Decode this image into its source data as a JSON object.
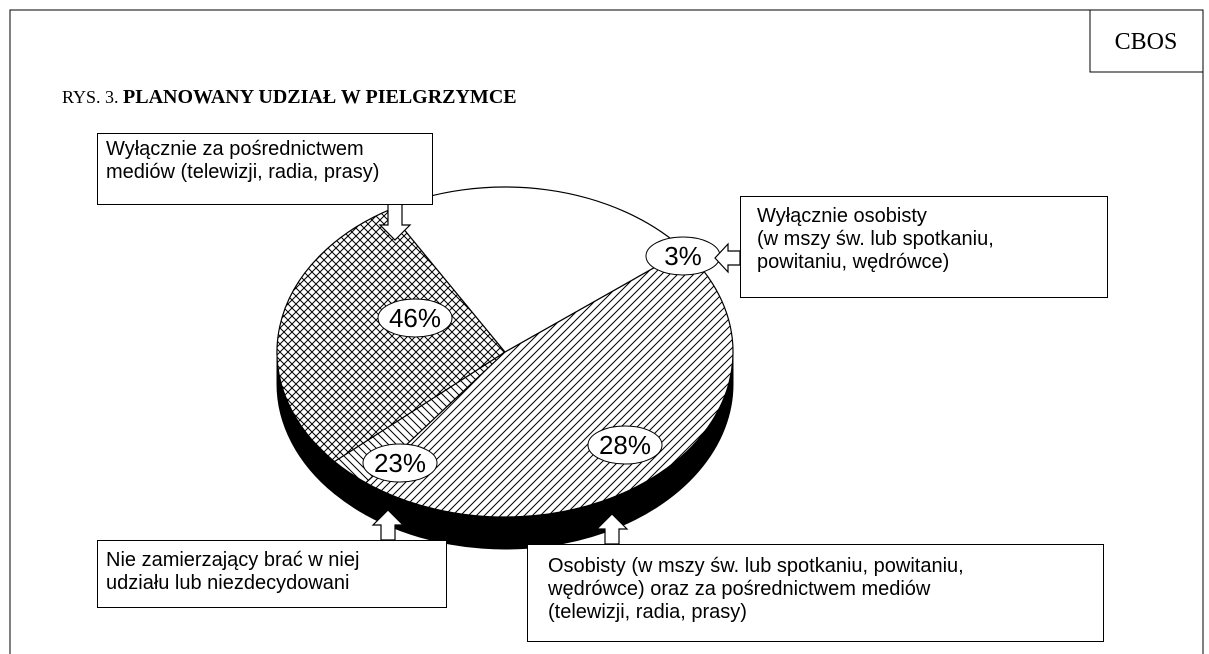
{
  "source": "CBOS",
  "chart_data": {
    "type": "pie",
    "figure_label": "RYS. 3.",
    "title": "PLANOWANY UDZIAŁ W PIELGRZYMCE",
    "categories": [
      "Wyłącznie za pośrednictwem\n mediów (telewizji, radia, prasy)",
      "Wyłącznie osobisty\n(w mszy św. lub spotkaniu,\npowitaniu, wędrówce)",
      "Osobisty (w mszy św. lub spotkaniu, powitaniu,\nwędrówce) oraz za pośrednictwem mediów\n (telewizji, radia, prasy)",
      "Nie zamierzający brać w niej\nudziału lub niezdecydowani"
    ],
    "values": [
      46,
      3,
      28,
      23
    ],
    "value_labels": [
      "46%",
      "3%",
      "28%",
      "23%"
    ]
  }
}
